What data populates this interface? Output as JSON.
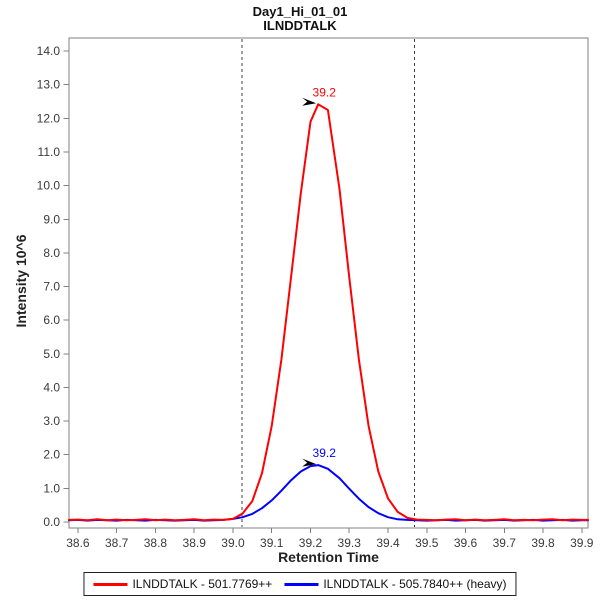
{
  "title": {
    "line1": "Day1_Hi_01_01",
    "line2": "ILNDDTALK"
  },
  "axes": {
    "x": {
      "label": "Retention Time",
      "tick_labels": [
        "38.6",
        "38.7",
        "38.8",
        "38.9",
        "39.0",
        "39.1",
        "39.2",
        "39.3",
        "39.4",
        "39.5",
        "39.6",
        "39.7",
        "39.8",
        "39.9"
      ]
    },
    "y": {
      "label": "Intensity 10^6",
      "tick_labels": [
        "0.0",
        "1.0",
        "2.0",
        "3.0",
        "4.0",
        "5.0",
        "6.0",
        "7.0",
        "8.0",
        "9.0",
        "10.0",
        "11.0",
        "12.0",
        "13.0",
        "14.0"
      ]
    }
  },
  "legend": [
    {
      "label": "ILNDDTALK - 501.7769++",
      "color": "#ff0000"
    },
    {
      "label": "ILNDDTALK - 505.7840++ (heavy)",
      "color": "#0000ff"
    }
  ],
  "colors": {
    "frame": "#808080",
    "tick_mark": "#808080",
    "tick_text": "#3a3a3a",
    "boundary": "#404040",
    "annotation_arrow": "#000000",
    "background": "#ffffff"
  },
  "chart_data": {
    "type": "line",
    "title": "Day1_Hi_01_01 ILNDDTALK",
    "xlabel": "Retention Time",
    "ylabel": "Intensity 10^6",
    "xlim": [
      38.577,
      39.916
    ],
    "ylim": [
      -0.18,
      14.39
    ],
    "grid": false,
    "legend_position": "bottom",
    "x": [
      38.577,
      38.6,
      38.625,
      38.65,
      38.675,
      38.7,
      38.725,
      38.75,
      38.775,
      38.8,
      38.825,
      38.85,
      38.875,
      38.9,
      38.925,
      38.95,
      38.975,
      39.0,
      39.025,
      39.05,
      39.075,
      39.1,
      39.125,
      39.15,
      39.175,
      39.2,
      39.22,
      39.245,
      39.275,
      39.3,
      39.325,
      39.35,
      39.375,
      39.4,
      39.425,
      39.45,
      39.475,
      39.5,
      39.525,
      39.55,
      39.575,
      39.6,
      39.625,
      39.65,
      39.675,
      39.7,
      39.725,
      39.75,
      39.775,
      39.8,
      39.825,
      39.85,
      39.875,
      39.9,
      39.916
    ],
    "series": [
      {
        "name": "ILNDDTALK - 501.7769++",
        "color": "#ff0000",
        "values": [
          0.06,
          0.07,
          0.05,
          0.08,
          0.05,
          0.07,
          0.05,
          0.06,
          0.08,
          0.05,
          0.07,
          0.05,
          0.06,
          0.08,
          0.05,
          0.07,
          0.06,
          0.09,
          0.25,
          0.62,
          1.45,
          2.85,
          4.83,
          7.29,
          9.77,
          11.9,
          12.42,
          12.25,
          9.9,
          7.29,
          4.83,
          2.85,
          1.5,
          0.7,
          0.3,
          0.12,
          0.07,
          0.06,
          0.05,
          0.07,
          0.08,
          0.05,
          0.07,
          0.05,
          0.06,
          0.08,
          0.05,
          0.06,
          0.05,
          0.07,
          0.08,
          0.05,
          0.07,
          0.06,
          0.06
        ]
      },
      {
        "name": "ILNDDTALK - 505.7840++ (heavy)",
        "color": "#0000ff",
        "values": [
          0.05,
          0.06,
          0.04,
          0.06,
          0.05,
          0.04,
          0.06,
          0.05,
          0.04,
          0.06,
          0.05,
          0.04,
          0.05,
          0.06,
          0.04,
          0.05,
          0.06,
          0.09,
          0.14,
          0.24,
          0.41,
          0.64,
          0.93,
          1.24,
          1.5,
          1.66,
          1.69,
          1.58,
          1.3,
          0.99,
          0.69,
          0.44,
          0.26,
          0.14,
          0.08,
          0.06,
          0.05,
          0.04,
          0.05,
          0.06,
          0.04,
          0.05,
          0.06,
          0.04,
          0.05,
          0.06,
          0.04,
          0.05,
          0.06,
          0.04,
          0.05,
          0.06,
          0.04,
          0.05,
          0.05
        ]
      }
    ],
    "peak_boundaries": [
      39.023,
      39.469
    ],
    "annotations": [
      {
        "text": "39.2",
        "x": 39.22,
        "y": 12.42,
        "color": "#ff0000",
        "series": "light"
      },
      {
        "text": "39.2",
        "x": 39.22,
        "y": 1.69,
        "color": "#0000ff",
        "series": "heavy"
      }
    ]
  }
}
